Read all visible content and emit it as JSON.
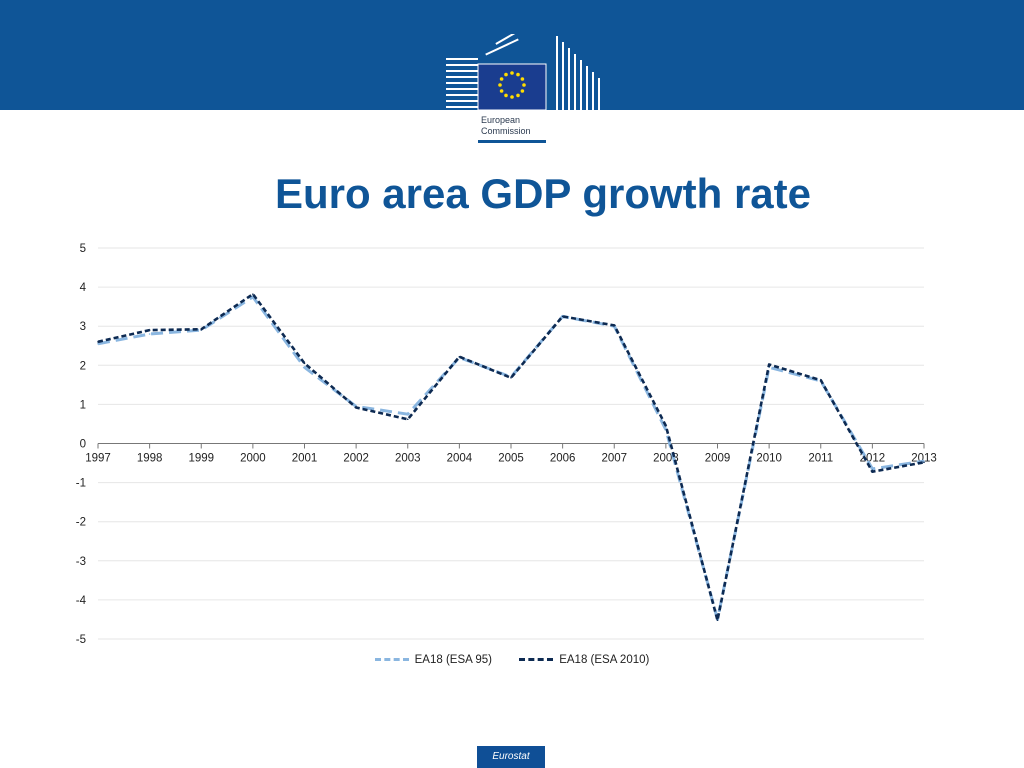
{
  "header": {
    "logo_icon": "eu-flag-icon",
    "logo_line1": "European",
    "logo_line2": "Commission",
    "brand_color": "#0f5597"
  },
  "title": "Euro area GDP growth rate",
  "chart_data": {
    "type": "line",
    "title": "Euro area GDP growth rate",
    "xlabel": "",
    "ylabel": "",
    "x": [
      "1997",
      "1998",
      "1999",
      "2000",
      "2001",
      "2002",
      "2003",
      "2004",
      "2005",
      "2006",
      "2007",
      "2008",
      "2009",
      "2010",
      "2011",
      "2012",
      "2013"
    ],
    "ylim": [
      -5,
      5
    ],
    "yticks": [
      "5",
      "4",
      "3",
      "2",
      "1",
      "0",
      "-1",
      "-2",
      "-3",
      "-4",
      "-5"
    ],
    "grid": true,
    "legend_position": "bottom",
    "series": [
      {
        "name": "EA18 (ESA 95)",
        "color": "#8ab6e0",
        "style": "dashed",
        "values": [
          2.55,
          2.8,
          2.9,
          3.75,
          1.95,
          0.95,
          0.75,
          2.2,
          1.7,
          3.25,
          3.0,
          0.35,
          -4.5,
          1.95,
          1.6,
          -0.65,
          -0.45
        ]
      },
      {
        "name": "EA18 (ESA 2010)",
        "color": "#0d2a52",
        "style": "dashed",
        "values": [
          2.6,
          2.9,
          2.92,
          3.82,
          2.05,
          0.92,
          0.62,
          2.22,
          1.68,
          3.25,
          3.02,
          0.45,
          -4.52,
          2.02,
          1.62,
          -0.72,
          -0.48
        ]
      }
    ]
  },
  "footer": {
    "label": "Eurostat"
  }
}
